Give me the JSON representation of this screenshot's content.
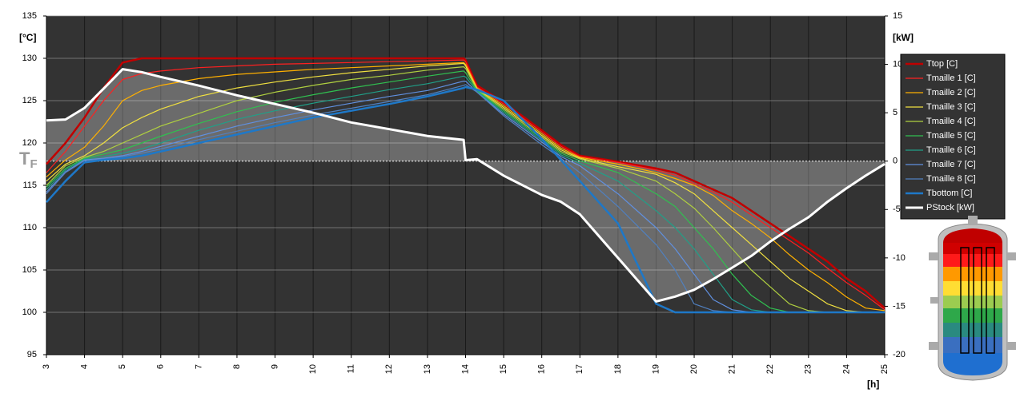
{
  "chart_data": {
    "type": "line",
    "y_label": "[°C]",
    "y2_label": "[kW]",
    "x_label": "[h]",
    "zero_label": {
      "main": "T",
      "sub": "F"
    },
    "x": [
      3,
      3.5,
      4,
      4.5,
      5,
      5.5,
      6,
      7,
      8,
      9,
      10,
      11,
      12,
      13,
      13.95,
      14,
      14.3,
      15,
      16,
      16.5,
      17,
      18,
      19,
      19.5,
      20,
      20.5,
      21,
      21.5,
      22,
      22.5,
      23,
      23.5,
      24,
      24.5,
      25
    ],
    "xlim": [
      3,
      25
    ],
    "xticks": [
      3,
      4,
      5,
      6,
      7,
      8,
      9,
      10,
      11,
      12,
      13,
      14,
      15,
      16,
      17,
      18,
      19,
      20,
      21,
      22,
      23,
      24,
      25
    ],
    "ylim": [
      95,
      135
    ],
    "yticks": [
      95,
      100,
      105,
      110,
      115,
      120,
      125,
      130,
      135
    ],
    "y2lim": [
      -20,
      15
    ],
    "y2ticks": [
      -20,
      -15,
      -10,
      -5,
      0,
      5,
      10,
      15
    ],
    "grid": true,
    "legend": "upper right",
    "series": [
      {
        "name": "Ttop [C]",
        "color": "#c00000",
        "line_width": 2.5,
        "values": [
          117.5,
          120,
          123,
          126.5,
          129.5,
          130,
          130,
          130,
          130,
          130,
          130,
          130,
          130,
          130,
          130,
          129.8,
          126.8,
          124.8,
          121.5,
          119.8,
          118.5,
          117.8,
          117,
          116.5,
          115.5,
          114.5,
          113.5,
          112,
          110.5,
          109,
          107.5,
          106,
          104,
          102.5,
          100.5
        ]
      },
      {
        "name": "Tmaille 1 [C]",
        "color": "#ff2020",
        "line_width": 1.2,
        "values": [
          116.5,
          119,
          122,
          125,
          127.5,
          128.2,
          128.5,
          128.9,
          129.1,
          129.3,
          129.4,
          129.5,
          129.6,
          129.7,
          129.8,
          129.6,
          126.6,
          124.6,
          121.3,
          119.6,
          118.4,
          117.7,
          116.8,
          116.2,
          115.2,
          114.2,
          113,
          111.5,
          110,
          108.5,
          107,
          105.2,
          103.5,
          102,
          100.3
        ]
      },
      {
        "name": "Tmaille 2 [C]",
        "color": "#ffb000",
        "line_width": 1.2,
        "values": [
          116,
          118,
          119.5,
          122,
          125,
          126.2,
          126.8,
          127.6,
          128.1,
          128.4,
          128.7,
          128.9,
          129.1,
          129.3,
          129.5,
          129.3,
          126.5,
          124.4,
          121.1,
          119.4,
          118.3,
          117.5,
          116.5,
          115.8,
          115,
          113.8,
          112,
          110.5,
          108.8,
          106.8,
          105,
          103.5,
          101.8,
          100.5,
          100.2
        ]
      },
      {
        "name": "Tmaille 3 [C]",
        "color": "#f0e040",
        "line_width": 1.2,
        "values": [
          115.5,
          117.5,
          118.5,
          120,
          121.8,
          123,
          124,
          125.5,
          126.5,
          127.2,
          127.8,
          128.3,
          128.7,
          129.1,
          129.4,
          129.1,
          126.4,
          124.2,
          120.9,
          119.2,
          118.2,
          117.2,
          116.3,
          115.3,
          114,
          112,
          110,
          108,
          106,
          104,
          102.5,
          101,
          100.2,
          100,
          100
        ]
      },
      {
        "name": "Tmaille 4 [C]",
        "color": "#b0d040",
        "line_width": 1.2,
        "values": [
          115,
          117.3,
          118.3,
          119,
          120,
          121,
          122,
          123.5,
          125,
          126,
          126.8,
          127.5,
          128,
          128.6,
          129,
          128.8,
          126.3,
          124,
          120.7,
          119,
          118.1,
          117,
          115.5,
          114,
          112.3,
          110,
          107.5,
          105,
          103,
          101,
          100.2,
          100,
          100,
          100,
          100
        ]
      },
      {
        "name": "Tmaille 5 [C]",
        "color": "#30c050",
        "line_width": 1.2,
        "values": [
          114.8,
          117,
          118.2,
          118.7,
          119.2,
          120,
          120.8,
          122.3,
          123.7,
          124.8,
          125.7,
          126.5,
          127.2,
          127.9,
          128.5,
          128.3,
          126.2,
          123.8,
          120.5,
          118.8,
          117.9,
          116.5,
          114,
          112.5,
          110,
          107.5,
          104.5,
          102,
          100.5,
          100,
          100,
          100,
          100,
          100,
          100
        ]
      },
      {
        "name": "Tmaille 6 [C]",
        "color": "#20a088",
        "line_width": 1.2,
        "values": [
          114.5,
          116.8,
          118.1,
          118.4,
          118.8,
          119.3,
          120,
          121.5,
          122.8,
          123.8,
          124.7,
          125.5,
          126.3,
          127,
          127.9,
          127.8,
          126.1,
          123.6,
          120.3,
          118.6,
          117.6,
          115.5,
          112,
          110,
          107.5,
          104.5,
          101.5,
          100.3,
          100,
          100,
          100,
          100,
          100,
          100,
          100
        ]
      },
      {
        "name": "Tmaille 7 [C]",
        "color": "#6090e0",
        "line_width": 1.2,
        "values": [
          114.2,
          116.6,
          118,
          118.2,
          118.5,
          119,
          119.6,
          120.8,
          122,
          123,
          123.9,
          124.7,
          125.5,
          126.2,
          127.3,
          127.3,
          126,
          123.4,
          120.1,
          118.4,
          117.3,
          114,
          110,
          107.5,
          104.5,
          101.5,
          100.3,
          100,
          100,
          100,
          100,
          100,
          100,
          100,
          100
        ]
      },
      {
        "name": "Tmaille 8 [C]",
        "color": "#5080c0",
        "line_width": 1.2,
        "values": [
          114,
          116.5,
          117.9,
          118.1,
          118.4,
          118.8,
          119.3,
          120.4,
          121.4,
          122.4,
          123.3,
          124.1,
          124.9,
          125.7,
          126.8,
          126.9,
          126,
          123.2,
          119.8,
          118.2,
          116.5,
          112.5,
          108,
          105,
          101,
          100.2,
          100,
          100,
          100,
          100,
          100,
          100,
          100,
          100,
          100
        ]
      },
      {
        "name": "Tbottom [C]",
        "color": "#1e78c8",
        "line_width": 2.5,
        "values": [
          113,
          115.5,
          117.7,
          118,
          118.2,
          118.5,
          119,
          120,
          121,
          122,
          123,
          123.8,
          124.6,
          125.5,
          126.5,
          126.6,
          126.3,
          125,
          120.5,
          118,
          115.5,
          110.5,
          101,
          100,
          100,
          100,
          100,
          100,
          100,
          100,
          100,
          100,
          100,
          100,
          100
        ]
      },
      {
        "name": "PStock [kW]",
        "color": "#ffffff",
        "line_width": 3,
        "axis": "y2",
        "values": [
          4.2,
          4.3,
          5.5,
          7.5,
          9.5,
          9.2,
          8.7,
          7.8,
          6.8,
          5.9,
          5,
          4,
          3.3,
          2.6,
          2.2,
          0.1,
          0.2,
          -1.5,
          -3.5,
          -4.2,
          -5.5,
          -10,
          -14.5,
          -14,
          -13.3,
          -12.2,
          -11,
          -9.8,
          -8.3,
          -7,
          -5.8,
          -4.2,
          -2.8,
          -1.5,
          -0.3
        ]
      }
    ]
  }
}
